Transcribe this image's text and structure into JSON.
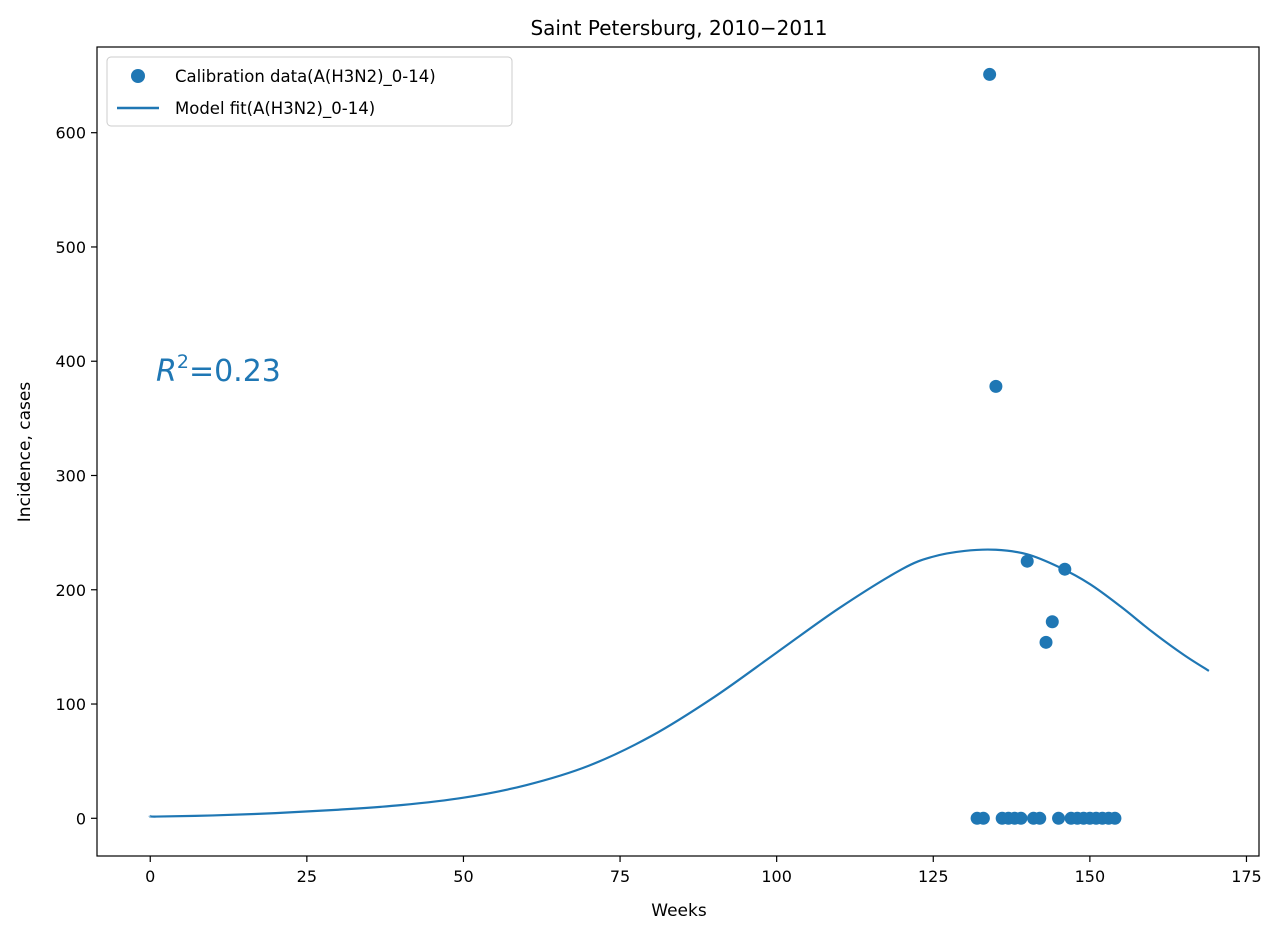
{
  "chart_data": {
    "type": "scatter",
    "title": "Saint Petersburg, 2010−2011",
    "xlabel": "Weeks",
    "ylabel": "Incidence, cases",
    "xlim": [
      -8.5,
      177
    ],
    "ylim": [
      -33,
      675
    ],
    "xticks": [
      0,
      25,
      50,
      75,
      100,
      125,
      150,
      175
    ],
    "yticks": [
      0,
      100,
      200,
      300,
      400,
      500,
      600
    ],
    "grid": false,
    "legend_position": "top-left",
    "color": "#1f77b4",
    "annotation": {
      "prefix": "R",
      "superscript": "2",
      "value": "=0.23"
    },
    "series": [
      {
        "name": "Calibration data(A(H3N2)_0-14)",
        "kind": "scatter",
        "x": [
          132,
          133,
          134,
          135,
          136,
          137,
          138,
          139,
          140,
          141,
          142,
          143,
          144,
          145,
          146,
          147,
          148,
          149,
          150,
          151,
          152,
          153,
          154
        ],
        "y": [
          0,
          0,
          651,
          378,
          0,
          0,
          0,
          0,
          225,
          0,
          0,
          154,
          172,
          0,
          218,
          0,
          0,
          0,
          0,
          0,
          0,
          0,
          0
        ]
      },
      {
        "name": "Model fit(A(H3N2)_0-14)",
        "kind": "line",
        "x": [
          0,
          1,
          10,
          20,
          30,
          40,
          50,
          60,
          70,
          80,
          90,
          100,
          110,
          120,
          125,
          130,
          135,
          140,
          145,
          150,
          155,
          160,
          165,
          169
        ],
        "y": [
          2,
          1.5,
          2.5,
          4.5,
          7.5,
          11.5,
          18,
          29,
          46,
          72,
          106,
          145,
          184,
          218,
          229,
          234,
          235,
          231,
          220,
          205,
          185,
          163,
          143,
          129
        ]
      }
    ]
  }
}
